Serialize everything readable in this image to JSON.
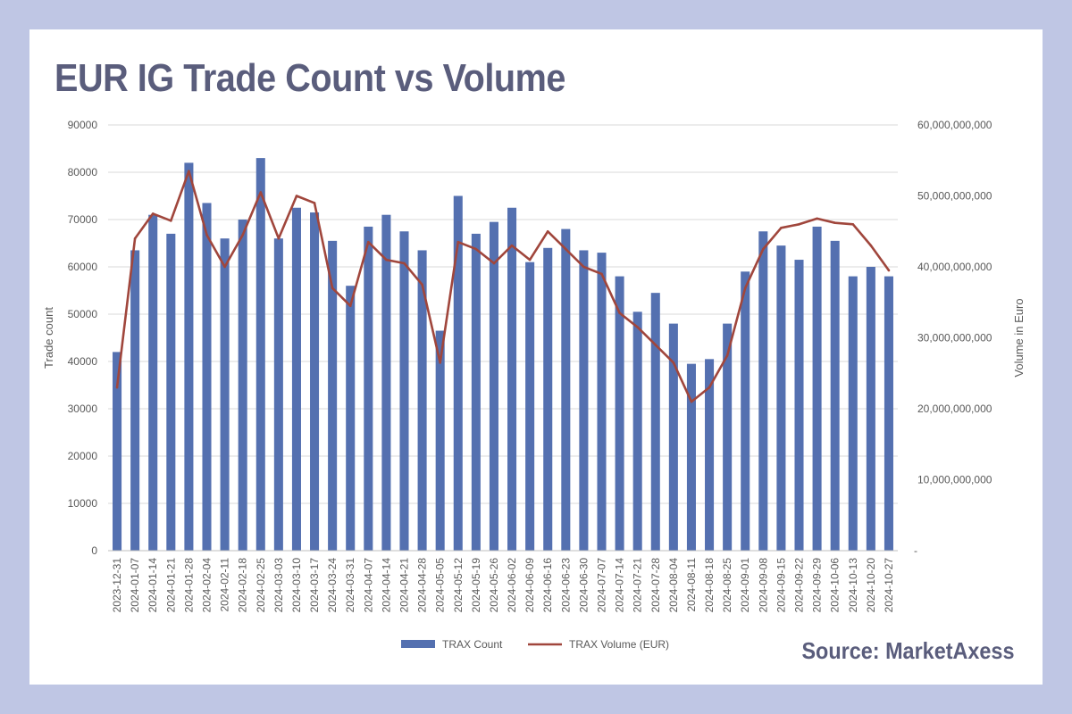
{
  "title": "EUR IG Trade Count vs Volume",
  "source": "Source: MarketAxess",
  "colors": {
    "page_background": "#bfc6e4",
    "bar": "#5470b0",
    "line": "#a0463c",
    "title": "#5a5d7c"
  },
  "chart_data": {
    "type": "bar",
    "combo_secondary_type": "line",
    "categories": [
      "2023-12-31",
      "2024-01-07",
      "2024-01-14",
      "2024-01-21",
      "2024-01-28",
      "2024-02-04",
      "2024-02-11",
      "2024-02-18",
      "2024-02-25",
      "2024-03-03",
      "2024-03-10",
      "2024-03-17",
      "2024-03-24",
      "2024-03-31",
      "2024-04-07",
      "2024-04-14",
      "2024-04-21",
      "2024-04-28",
      "2024-05-05",
      "2024-05-12",
      "2024-05-19",
      "2024-05-26",
      "2024-06-02",
      "2024-06-09",
      "2024-06-16",
      "2024-06-23",
      "2024-06-30",
      "2024-07-07",
      "2024-07-14",
      "2024-07-21",
      "2024-07-28",
      "2024-08-04",
      "2024-08-11",
      "2024-08-18",
      "2024-08-25",
      "2024-09-01",
      "2024-09-08",
      "2024-09-15",
      "2024-09-22",
      "2024-09-29",
      "2024-10-06",
      "2024-10-13",
      "2024-10-20",
      "2024-10-27"
    ],
    "series": [
      {
        "name": "TRAX Count",
        "axis": "left",
        "type": "bar",
        "values": [
          42000,
          63500,
          71000,
          67000,
          82000,
          73500,
          66000,
          70000,
          83000,
          66000,
          72500,
          71500,
          65500,
          56000,
          68500,
          71000,
          67500,
          63500,
          46500,
          75000,
          67000,
          69500,
          72500,
          61000,
          64000,
          68000,
          63500,
          63000,
          58000,
          50500,
          54500,
          48000,
          39500,
          40500,
          48000,
          59000,
          67500,
          64500,
          61500,
          68500,
          65500,
          58000,
          60000,
          58000
        ],
        "color": "#5470b0"
      },
      {
        "name": "TRAX Volume (EUR)",
        "axis": "right",
        "type": "line",
        "values": [
          23000000000,
          44000000000,
          47500000000,
          46500000000,
          53500000000,
          44500000000,
          40000000000,
          44500000000,
          50500000000,
          44000000000,
          50000000000,
          49000000000,
          37000000000,
          34500000000,
          43500000000,
          41000000000,
          40500000000,
          37500000000,
          26500000000,
          43500000000,
          42500000000,
          40500000000,
          43000000000,
          41000000000,
          45000000000,
          42500000000,
          40000000000,
          39000000000,
          33500000000,
          31500000000,
          29000000000,
          26500000000,
          21000000000,
          23000000000,
          27500000000,
          37000000000,
          42500000000,
          45500000000,
          46000000000,
          46800000000,
          46200000000,
          46000000000,
          43000000000,
          39500000000
        ],
        "color": "#a0463c"
      }
    ],
    "ylabel": "Trade count",
    "ylim": [
      0,
      90000
    ],
    "yticks": [
      "0",
      "10000",
      "20000",
      "30000",
      "40000",
      "50000",
      "60000",
      "70000",
      "80000",
      "90000"
    ],
    "y2label": "Volume in Euro",
    "y2lim": [
      0,
      60000000000
    ],
    "y2ticks": [
      "-",
      "10,000,000,000",
      "20,000,000,000",
      "30,000,000,000",
      "40,000,000,000",
      "50,000,000,000",
      "60,000,000,000"
    ],
    "grid": true,
    "legend": "bottom"
  }
}
